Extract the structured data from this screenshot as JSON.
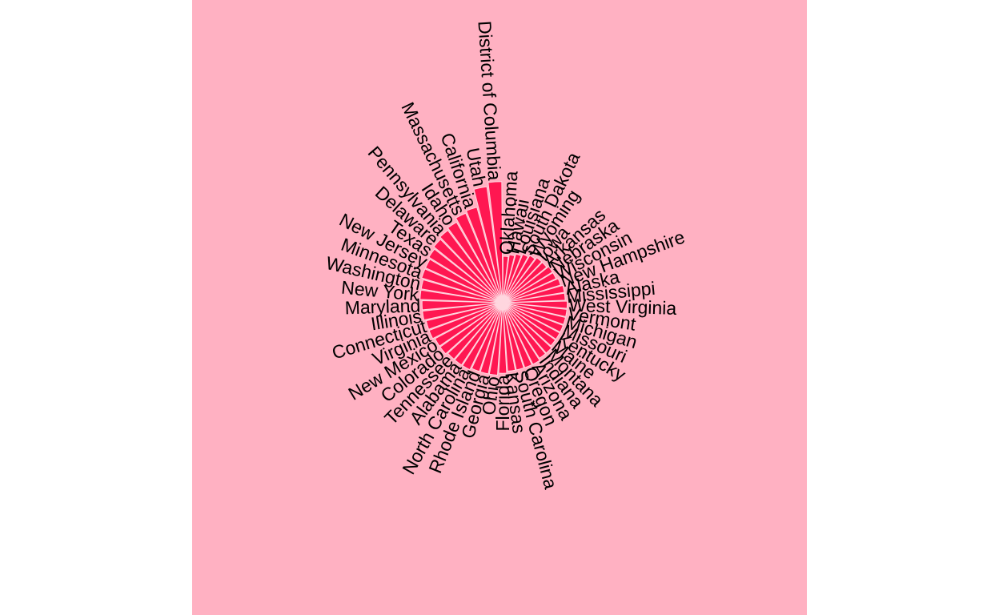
{
  "chart_data": {
    "type": "bar",
    "coord": "polar",
    "title": "",
    "xlabel": "",
    "ylabel": "",
    "ylim": [
      0,
      100
    ],
    "grid": false,
    "legend": "none",
    "colors": {
      "background": "#ffb1c2",
      "bar": "#ff1751",
      "bar_outline": "#ffd6df"
    },
    "categories": [
      "Oklahoma",
      "Hawaii",
      "Louisiana",
      "South Dakota",
      "Wyoming",
      "Iowa",
      "Arkansas",
      "Nebraska",
      "Wisconsin",
      "New Hampshire",
      "Alaska",
      "Mississippi",
      "West Virginia",
      "Vermont",
      "Michigan",
      "Missouri",
      "Kentucky",
      "Maine",
      "Montana",
      "Indiana",
      "Arizona",
      "Oregon",
      "South Carolina",
      "Kansas",
      "Florida",
      "Ohio",
      "Georgia",
      "Rhode Island",
      "North Carolina",
      "Alabama",
      "Tennessee",
      "Colorado",
      "New Mexico",
      "Virginia",
      "Connecticut",
      "Illinois",
      "Maryland",
      "New York",
      "Washington",
      "Minnesota",
      "New Jersey",
      "Texas",
      "Delaware",
      "Pennsylvania",
      "Idaho",
      "Massachusetts",
      "California",
      "Utah",
      "District of Columbia"
    ],
    "values": [
      23,
      24,
      25,
      26,
      27,
      28,
      28,
      29,
      29,
      30,
      31,
      31,
      32,
      32,
      32,
      32,
      32,
      32,
      33,
      33,
      34,
      34,
      34,
      34,
      35,
      36,
      36,
      36,
      37,
      37,
      37,
      38,
      38,
      39,
      39,
      40,
      40,
      41,
      41,
      42,
      42,
      43,
      44,
      45,
      46,
      48,
      49,
      58,
      60
    ]
  }
}
